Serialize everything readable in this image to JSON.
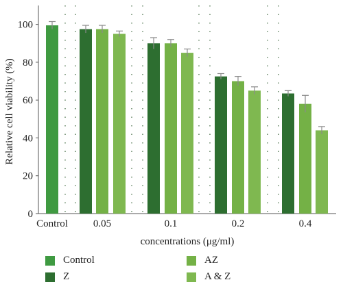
{
  "chart_data": {
    "type": "bar",
    "xlabel": "concentrations (μg/ml)",
    "ylabel": "Relative cell viability (%)",
    "ylim": [
      0,
      110
    ],
    "yticks": [
      "0",
      "20",
      "40",
      "60",
      "80",
      "100"
    ],
    "categories": [
      "Control",
      "0.05",
      "0.1",
      "0.2",
      "0.4"
    ],
    "grid": "dotted vertical",
    "legend_position": "bottom",
    "series": [
      {
        "name": "Control",
        "color": "#3f9a41",
        "values": [
          99.5,
          null,
          null,
          null,
          null
        ],
        "errors": [
          2,
          null,
          null,
          null,
          null
        ]
      },
      {
        "name": "Z",
        "color": "#2d6e30",
        "values": [
          null,
          97.5,
          90,
          72.5,
          63.5
        ],
        "errors": [
          null,
          2,
          3,
          1.5,
          1.5
        ]
      },
      {
        "name": "AZ",
        "color": "#74b146",
        "values": [
          null,
          97.5,
          90,
          70,
          58
        ],
        "errors": [
          null,
          2,
          2,
          2.5,
          4.5
        ]
      },
      {
        "name": "A & Z",
        "color": "#7fb850",
        "values": [
          null,
          95,
          85,
          65,
          44
        ],
        "errors": [
          null,
          1.5,
          2,
          2,
          2
        ]
      }
    ]
  }
}
